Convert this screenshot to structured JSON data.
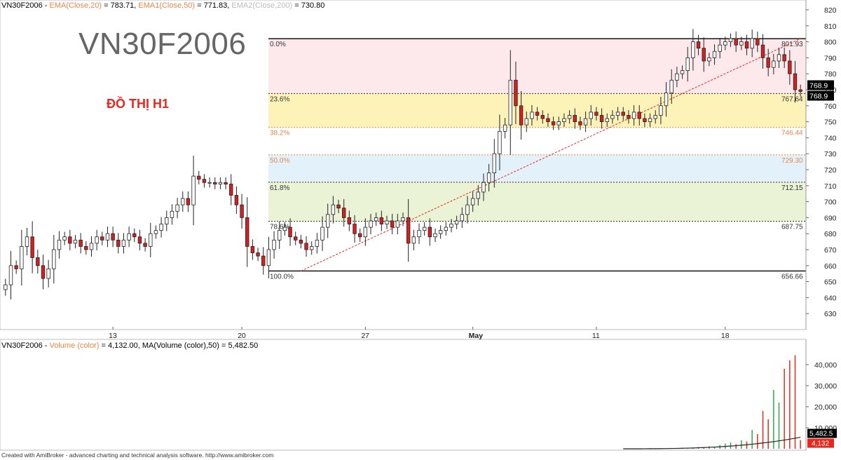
{
  "header": {
    "symbol": "VN30F2006",
    "sep": " - ",
    "ema20_label": "EMA(Close,20)",
    "ema20_value": " = 783.71, ",
    "ema50_label": "EMA1(Close,50)",
    "ema50_value": " = 771.83, ",
    "ema200_label": "EMA2(Close,200)",
    "ema200_value": " = 730.80"
  },
  "overlay": {
    "big_title": "VN30F2006",
    "subtitle": "ĐỒ THỊ H1"
  },
  "volume_header": {
    "symbol": "VN30F2006",
    "sep": " - ",
    "label": "Volume (color)",
    "value": " = 4,132.00, MA(Volume (color),50) = 5,482.50"
  },
  "footer": "Created with AmiBroker - advanced charting and technical analysis software. http://www.amibroker.com",
  "colors": {
    "up_fill": "#ffffff",
    "down_fill": "#d42020",
    "outline": "#222222",
    "ema_label": "#e8874a",
    "vol_up": "#2fa84f",
    "vol_down": "#e8281e"
  },
  "chart_data": [
    {
      "type": "candlestick",
      "ylim": [
        620,
        820
      ],
      "y_ticks": [
        630,
        640,
        650,
        660,
        670,
        680,
        690,
        700,
        710,
        720,
        730,
        740,
        750,
        760,
        770,
        780,
        790,
        800,
        810,
        820
      ],
      "x_ticks": [
        "13",
        "20",
        "27",
        "May",
        "11",
        "18"
      ],
      "x_tick_index": [
        20,
        44,
        67,
        87,
        110,
        134
      ],
      "last_price": "768.9",
      "fibonacci": [
        {
          "pct": "0.0%",
          "price": 801.93,
          "price_label": "801.93"
        },
        {
          "pct": "23.6%",
          "price": 767.64,
          "price_label": "767.64"
        },
        {
          "pct": "38.2%",
          "price": 746.44,
          "price_label": "746.44"
        },
        {
          "pct": "50.0%",
          "price": 729.3,
          "price_label": "729.30"
        },
        {
          "pct": "61.8%",
          "price": 712.15,
          "price_label": "712.15"
        },
        {
          "pct": "78.6%",
          "price": 687.75,
          "price_label": "687.75"
        },
        {
          "pct": "100.0%",
          "price": 656.66,
          "price_label": "656.66"
        }
      ],
      "trendline": {
        "from_index": 55,
        "from_price": 656.66,
        "to_index": 148,
        "to_price": 801.93
      },
      "closes": [
        648,
        660,
        658,
        672,
        678,
        665,
        660,
        652,
        658,
        670,
        676,
        678,
        674,
        676,
        672,
        670,
        674,
        678,
        676,
        680,
        676,
        672,
        676,
        680,
        678,
        674,
        672,
        680,
        682,
        686,
        690,
        694,
        698,
        702,
        698,
        716,
        714,
        712,
        712,
        711,
        712,
        711,
        704,
        698,
        690,
        672,
        668,
        666,
        660,
        670,
        676,
        682,
        684,
        678,
        676,
        674,
        670,
        672,
        676,
        684,
        692,
        698,
        696,
        690,
        686,
        680,
        678,
        684,
        688,
        690,
        686,
        688,
        684,
        688,
        690,
        674,
        678,
        682,
        684,
        678,
        680,
        682,
        684,
        686,
        688,
        692,
        698,
        702,
        706,
        712,
        718,
        730,
        744,
        748,
        776,
        760,
        748,
        752,
        756,
        754,
        752,
        750,
        748,
        750,
        752,
        754,
        750,
        748,
        752,
        756,
        754,
        750,
        752,
        754,
        756,
        754,
        752,
        756,
        752,
        750,
        752,
        754,
        760,
        768,
        776,
        780,
        782,
        790,
        800,
        796,
        788,
        790,
        794,
        798,
        800,
        802,
        798,
        800,
        796,
        802,
        798,
        790,
        784,
        788,
        792,
        788,
        780,
        770,
        768.9
      ]
    },
    {
      "type": "bar",
      "ylim": [
        0,
        48000
      ],
      "y_ticks": [
        10000,
        20000,
        30000,
        40000
      ],
      "y_tick_labels": [
        "10,000",
        "20,000",
        "30,000",
        "40,000"
      ],
      "last_volume_label": "4,132",
      "ma_label": "5,482.5",
      "ma_end": 5482.5,
      "tail_values": [
        80,
        120,
        90,
        200,
        150,
        300,
        220,
        180,
        260,
        400,
        350,
        500,
        420,
        600,
        800,
        700,
        1200,
        900,
        1800,
        2500,
        3000,
        2200,
        4000,
        3500,
        9000,
        7000,
        18000,
        14000,
        28000,
        22000,
        38000,
        42000,
        44500,
        4132
      ]
    }
  ]
}
